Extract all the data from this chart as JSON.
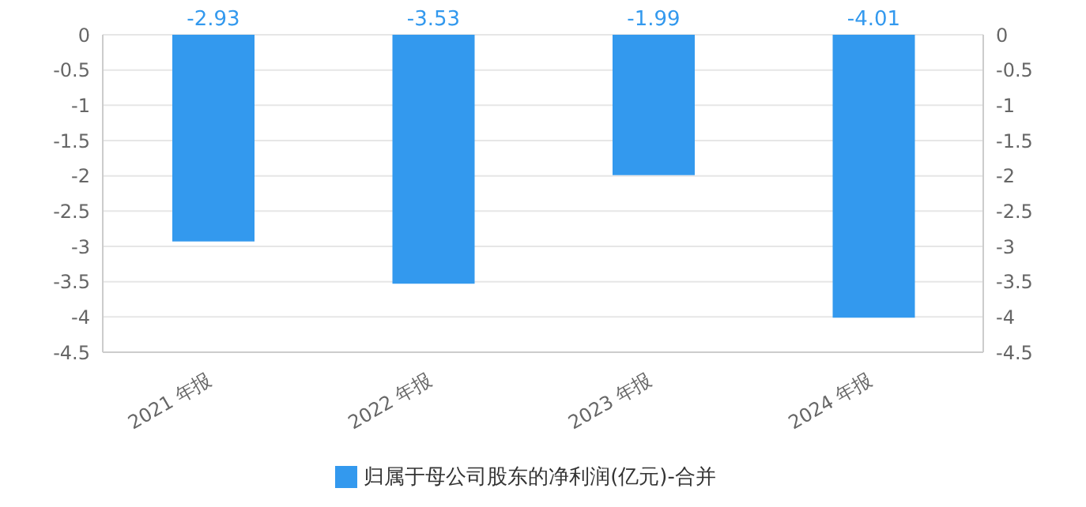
{
  "chart_data": {
    "type": "bar",
    "categories": [
      "2021 年报",
      "2022 年报",
      "2023 年报",
      "2024 年报"
    ],
    "series": [
      {
        "name": "归属于母公司股东的净利润(亿元)-合并",
        "color": "#3399ee",
        "values": [
          -2.93,
          -3.53,
          -1.99,
          -4.01
        ]
      }
    ],
    "data_labels": true,
    "ylim": [
      -4.5,
      0
    ],
    "yticks": [
      0,
      -0.5,
      -1,
      -1.5,
      -2,
      -2.5,
      -3,
      -3.5,
      -4,
      -4.5
    ],
    "y2lim": [
      -4.5,
      0
    ],
    "y2ticks": [
      0,
      -0.5,
      -1,
      -1.5,
      -2,
      -2.5,
      -3,
      -3.5,
      -4,
      -4.5
    ],
    "grid": "y",
    "legend": "bottom"
  }
}
